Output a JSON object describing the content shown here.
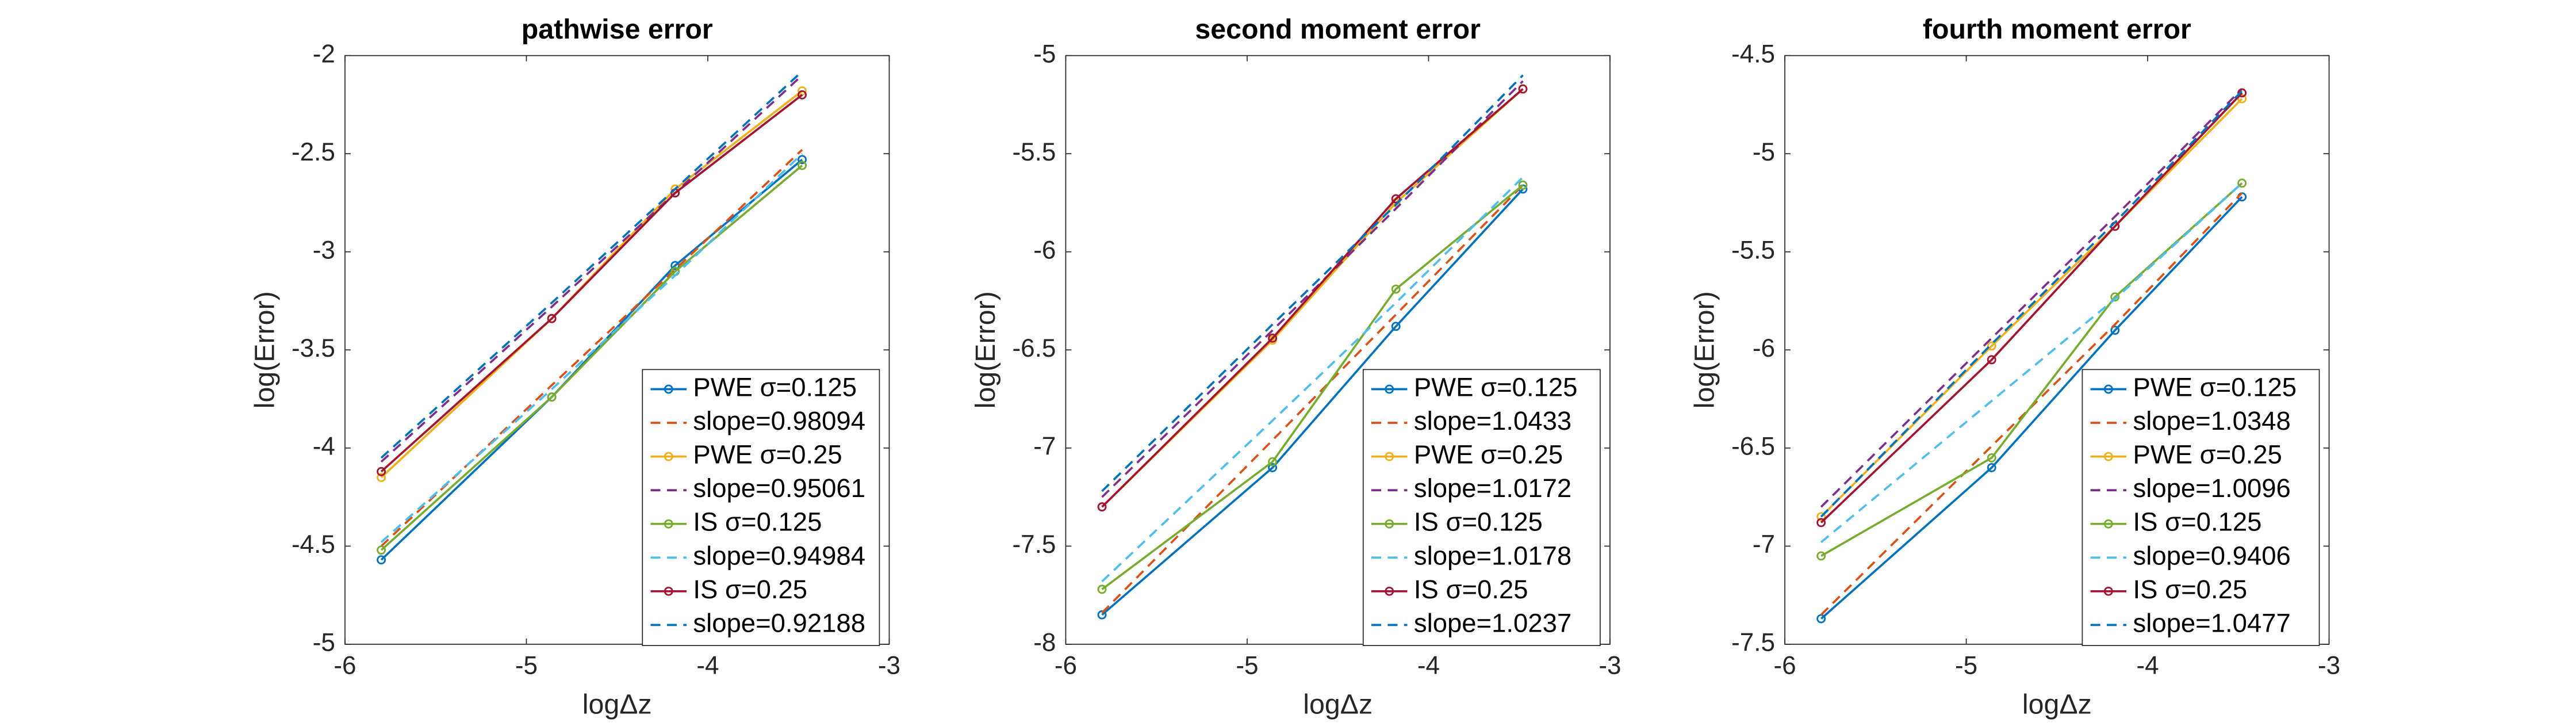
{
  "chart_data": [
    {
      "type": "line",
      "title": "pathwise error",
      "xlabel": "logΔz",
      "ylabel": "log(Error)",
      "x": [
        -5.8,
        -4.86,
        -4.18,
        -3.48
      ],
      "xlim": [
        -6,
        -3
      ],
      "xticks": [
        -6,
        -5,
        -4,
        -3
      ],
      "ylim": [
        -5,
        -2
      ],
      "yticks": [
        -5,
        -4.5,
        -4,
        -3.5,
        -3,
        -2.5,
        -2
      ],
      "legend": "southeast",
      "series": [
        {
          "name": "PWE σ=0.125",
          "color": "#0072BD",
          "linestyle": "solid",
          "marker": "circle",
          "values": [
            -4.57,
            -3.74,
            -3.07,
            -2.53
          ]
        },
        {
          "name": "slope=0.98094",
          "color": "#D95319",
          "linestyle": "dashed",
          "marker": "none",
          "values": [
            -4.5,
            -3.68,
            -3.09,
            -2.48
          ]
        },
        {
          "name": "PWE σ=0.25",
          "color": "#EDB120",
          "linestyle": "solid",
          "marker": "circle",
          "values": [
            -4.15,
            -3.34,
            -2.68,
            -2.18
          ]
        },
        {
          "name": "slope=0.95061",
          "color": "#7E2F8E",
          "linestyle": "dashed",
          "marker": "none",
          "values": [
            -4.07,
            -3.28,
            -2.7,
            -2.1
          ]
        },
        {
          "name": "IS σ=0.125",
          "color": "#77AC30",
          "linestyle": "solid",
          "marker": "circle",
          "values": [
            -4.52,
            -3.74,
            -3.1,
            -2.56
          ]
        },
        {
          "name": "slope=0.94984",
          "color": "#4DBEEE",
          "linestyle": "dashed",
          "marker": "none",
          "values": [
            -4.48,
            -3.7,
            -3.12,
            -2.5
          ]
        },
        {
          "name": "IS σ=0.25",
          "color": "#A2142F",
          "linestyle": "solid",
          "marker": "circle",
          "values": [
            -4.12,
            -3.34,
            -2.7,
            -2.2
          ]
        },
        {
          "name": "slope=0.92188",
          "color": "#0072BD",
          "linestyle": "dashed",
          "marker": "none",
          "values": [
            -4.05,
            -3.26,
            -2.68,
            -2.08
          ]
        }
      ]
    },
    {
      "type": "line",
      "title": "second moment error",
      "xlabel": "logΔz",
      "ylabel": "log(Error)",
      "x": [
        -5.8,
        -4.86,
        -4.18,
        -3.48
      ],
      "xlim": [
        -6,
        -3
      ],
      "xticks": [
        -6,
        -5,
        -4,
        -3
      ],
      "ylim": [
        -8,
        -5
      ],
      "yticks": [
        -8,
        -7.5,
        -7,
        -6.5,
        -6,
        -5.5,
        -5
      ],
      "legend": "southeast",
      "series": [
        {
          "name": "PWE σ=0.125",
          "color": "#0072BD",
          "linestyle": "solid",
          "marker": "circle",
          "values": [
            -7.85,
            -7.1,
            -6.38,
            -5.68
          ]
        },
        {
          "name": "slope=1.0433",
          "color": "#D95319",
          "linestyle": "dashed",
          "marker": "none",
          "values": [
            -7.84,
            -6.96,
            -6.32,
            -5.66
          ]
        },
        {
          "name": "PWE σ=0.25",
          "color": "#EDB120",
          "linestyle": "solid",
          "marker": "circle",
          "values": [
            -7.3,
            -6.45,
            -5.75,
            -5.17
          ]
        },
        {
          "name": "slope=1.0172",
          "color": "#7E2F8E",
          "linestyle": "dashed",
          "marker": "none",
          "values": [
            -7.25,
            -6.4,
            -5.78,
            -5.13
          ]
        },
        {
          "name": "IS σ=0.125",
          "color": "#77AC30",
          "linestyle": "solid",
          "marker": "circle",
          "values": [
            -7.72,
            -7.07,
            -6.19,
            -5.66
          ]
        },
        {
          "name": "slope=1.0178",
          "color": "#4DBEEE",
          "linestyle": "dashed",
          "marker": "none",
          "values": [
            -7.68,
            -6.86,
            -6.26,
            -5.62
          ]
        },
        {
          "name": "IS σ=0.25",
          "color": "#A2142F",
          "linestyle": "solid",
          "marker": "circle",
          "values": [
            -7.3,
            -6.44,
            -5.73,
            -5.17
          ]
        },
        {
          "name": "slope=1.0237",
          "color": "#0072BD",
          "linestyle": "dashed",
          "marker": "none",
          "values": [
            -7.22,
            -6.37,
            -5.76,
            -5.1
          ]
        }
      ]
    },
    {
      "type": "line",
      "title": "fourth moment error",
      "xlabel": "logΔz",
      "ylabel": "log(Error)",
      "x": [
        -5.8,
        -4.86,
        -4.18,
        -3.48
      ],
      "xlim": [
        -6,
        -3
      ],
      "xticks": [
        -6,
        -5,
        -4,
        -3
      ],
      "ylim": [
        -7.5,
        -4.5
      ],
      "yticks": [
        -7.5,
        -7,
        -6.5,
        -6,
        -5.5,
        -5,
        -4.5
      ],
      "legend": "southeast",
      "series": [
        {
          "name": "PWE σ=0.125",
          "color": "#0072BD",
          "linestyle": "solid",
          "marker": "circle",
          "values": [
            -7.37,
            -6.6,
            -5.9,
            -5.22
          ]
        },
        {
          "name": "slope=1.0348",
          "color": "#D95319",
          "linestyle": "dashed",
          "marker": "none",
          "values": [
            -7.35,
            -6.49,
            -5.87,
            -5.2
          ]
        },
        {
          "name": "PWE σ=0.25",
          "color": "#EDB120",
          "linestyle": "solid",
          "marker": "circle",
          "values": [
            -6.85,
            -5.98,
            -5.37,
            -4.72
          ]
        },
        {
          "name": "slope=1.0096",
          "color": "#7E2F8E",
          "linestyle": "dashed",
          "marker": "none",
          "values": [
            -6.8,
            -5.94,
            -5.32,
            -4.67
          ]
        },
        {
          "name": "IS σ=0.125",
          "color": "#77AC30",
          "linestyle": "solid",
          "marker": "circle",
          "values": [
            -7.05,
            -6.55,
            -5.73,
            -5.15
          ]
        },
        {
          "name": "slope=0.9406",
          "color": "#4DBEEE",
          "linestyle": "dashed",
          "marker": "none",
          "values": [
            -6.98,
            -6.26,
            -5.74,
            -5.15
          ]
        },
        {
          "name": "IS σ=0.25",
          "color": "#A2142F",
          "linestyle": "solid",
          "marker": "circle",
          "values": [
            -6.88,
            -6.05,
            -5.37,
            -4.69
          ]
        },
        {
          "name": "slope=1.0477",
          "color": "#0072BD",
          "linestyle": "dashed",
          "marker": "none",
          "values": [
            -6.85,
            -5.97,
            -5.35,
            -4.68
          ]
        }
      ]
    }
  ]
}
